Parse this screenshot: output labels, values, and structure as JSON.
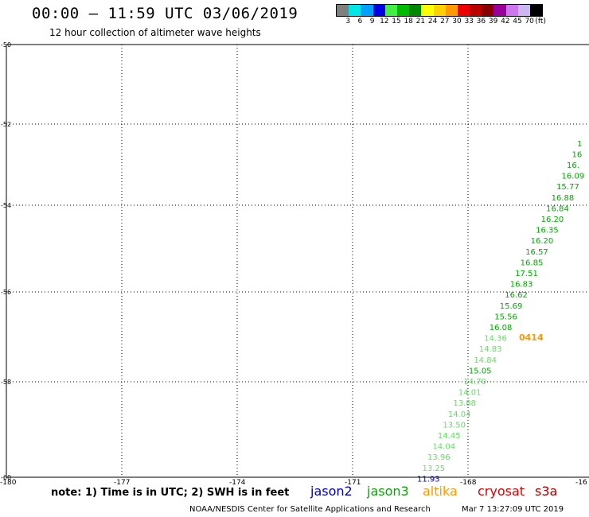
{
  "title": "00:00 – 11:59 UTC 03/06/2019",
  "subtitle": "12 hour collection of altimeter wave heights",
  "colorbar": {
    "colors": [
      "#7f7f7f",
      "#00e5e5",
      "#00a0ff",
      "#0000e5",
      "#44ee44",
      "#00bb00",
      "#008800",
      "#ffff00",
      "#ffd000",
      "#ff9900",
      "#ee0000",
      "#bb0000",
      "#880000",
      "#990099",
      "#cc77ee",
      "#cbb8f0",
      "#000000"
    ],
    "labels": [
      "3",
      "6",
      "9",
      "12",
      "15",
      "18",
      "21",
      "24",
      "27",
      "30",
      "33",
      "36",
      "39",
      "42",
      "45",
      "70",
      "(ft)"
    ]
  },
  "latitudes": [
    "-50",
    "-52",
    "-54",
    "-56",
    "-58",
    "-60"
  ],
  "longitudes": [
    "-180",
    "-177",
    "-174",
    "-171",
    "-168",
    "-16"
  ],
  "observations": [
    {
      "text": "1",
      "lat": -52.35,
      "color": "#00aa00"
    },
    {
      "text": "16",
      "lat": -52.6,
      "color": "#00aa00"
    },
    {
      "text": "16.",
      "lat": -52.85,
      "color": "#00aa00"
    },
    {
      "text": "16.09",
      "lat": -53.1,
      "color": "#00aa00"
    },
    {
      "text": "15.77",
      "lat": -53.35,
      "color": "#00aa00"
    },
    {
      "text": "16.88",
      "lat": -53.6,
      "color": "#00aa00"
    },
    {
      "text": "16.84",
      "lat": -53.85,
      "color": "#00aa00"
    },
    {
      "text": "16.20",
      "lat": -54.1,
      "color": "#00aa00"
    },
    {
      "text": "16.35",
      "lat": -54.35,
      "color": "#00aa00"
    },
    {
      "text": "16.20",
      "lat": -54.6,
      "color": "#00aa00"
    },
    {
      "text": "16.57",
      "lat": -54.85,
      "color": "#00aa00"
    },
    {
      "text": "16.85",
      "lat": -55.1,
      "color": "#00aa00"
    },
    {
      "text": "17.51",
      "lat": -55.35,
      "color": "#00aa00"
    },
    {
      "text": "16.83",
      "lat": -55.6,
      "color": "#00aa00"
    },
    {
      "text": "16.62",
      "lat": -55.85,
      "color": "#00aa00"
    },
    {
      "text": "15.69",
      "lat": -56.1,
      "color": "#00aa00"
    },
    {
      "text": "15.56",
      "lat": -56.35,
      "color": "#00aa00"
    },
    {
      "text": "16.08",
      "lat": -56.6,
      "color": "#00aa00"
    },
    {
      "text": "14.36",
      "lat": -56.85,
      "color": "#66dd66"
    },
    {
      "text": "14.83",
      "lat": -57.1,
      "color": "#66dd66"
    },
    {
      "text": "14.84",
      "lat": -57.35,
      "color": "#66dd66"
    },
    {
      "text": "15.05",
      "lat": -57.6,
      "color": "#00aa00"
    },
    {
      "text": "14.70",
      "lat": -57.85,
      "color": "#66dd66"
    },
    {
      "text": "14.01",
      "lat": -58.1,
      "color": "#66dd66"
    },
    {
      "text": "13.88",
      "lat": -58.35,
      "color": "#66dd66"
    },
    {
      "text": "14.04",
      "lat": -58.6,
      "color": "#66dd66"
    },
    {
      "text": "13.50",
      "lat": -58.85,
      "color": "#66dd66"
    },
    {
      "text": "14.45",
      "lat": -59.1,
      "color": "#66dd66"
    },
    {
      "text": "14.04",
      "lat": -59.35,
      "color": "#66dd66"
    },
    {
      "text": "13.96",
      "lat": -59.6,
      "color": "#66dd66"
    },
    {
      "text": "13.25",
      "lat": -59.85,
      "color": "#66dd66"
    },
    {
      "text": "11.93",
      "lat": -60.1,
      "color": "#0000cc"
    }
  ],
  "cycle_label": {
    "text": "0414",
    "color": "#ff9900"
  },
  "note": "note: 1) Time is in UTC; 2) SWH is in feet",
  "satellites": [
    {
      "name": "jason2",
      "color": "#0000cc"
    },
    {
      "name": "jason3",
      "color": "#00aa00"
    },
    {
      "name": "altika",
      "color": "#ff9900"
    },
    {
      "name": "cryosat",
      "color": "#dd0000"
    },
    {
      "name": "s3a",
      "color": "#aa0000"
    }
  ],
  "credit": "NOAA/NESDIS Center for Satellite Applications and Research",
  "timestamp": "Mar  7 13:27:09 UTC 2019"
}
